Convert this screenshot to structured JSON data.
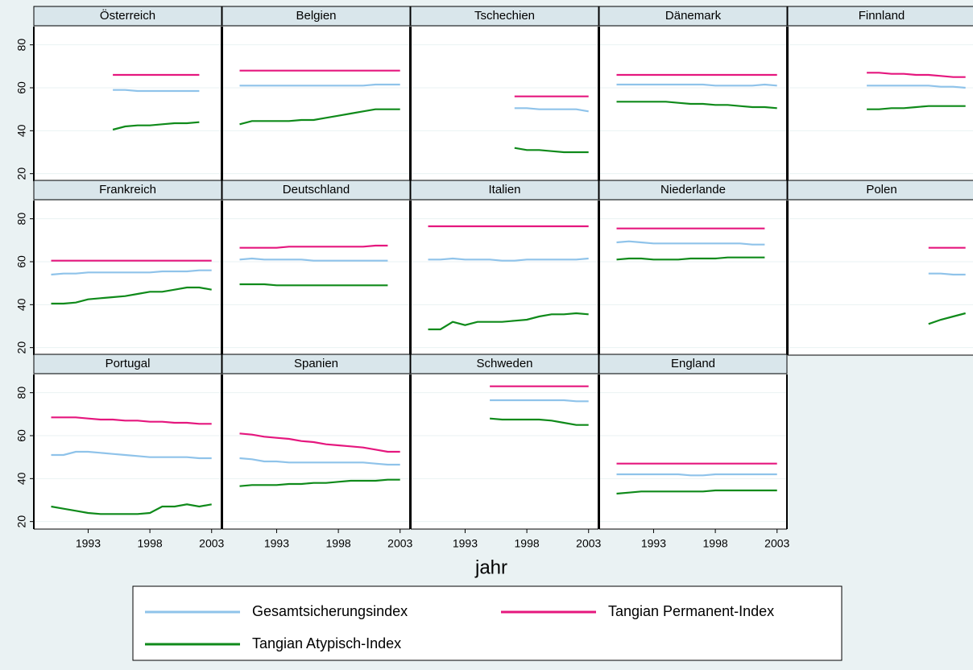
{
  "chart_data": {
    "type": "line",
    "xlabel": "jahr",
    "x": [
      1990,
      1991,
      1992,
      1993,
      1994,
      1995,
      1996,
      1997,
      1998,
      1999,
      2000,
      2001,
      2002,
      2003
    ],
    "xlim": [
      1988.6,
      2003.8
    ],
    "xticks": [
      1993,
      1998,
      2003
    ],
    "ylim": [
      16.5,
      88.5
    ],
    "yticks": [
      20,
      40,
      60,
      80
    ],
    "grid": true,
    "legend": "bottom",
    "series": [
      {
        "name": "Gesamtsicherungsindex",
        "color": "#8fc3ea"
      },
      {
        "name": "Tangian Permanent-Index",
        "color": "#e5177e"
      },
      {
        "name": "Tangian Atypisch-Index",
        "color": "#0f8a1a"
      }
    ],
    "panels": [
      {
        "title": "Österreich",
        "values": [
          [
            null,
            null,
            null,
            null,
            null,
            59,
            59,
            58.5,
            58.5,
            58.5,
            58.5,
            58.5,
            58.5,
            null
          ],
          [
            null,
            null,
            null,
            null,
            null,
            66,
            66,
            66,
            66,
            66,
            66,
            66,
            66,
            null
          ],
          [
            null,
            null,
            null,
            null,
            null,
            40.5,
            42,
            42.5,
            42.5,
            43,
            43.5,
            43.5,
            44,
            null
          ]
        ]
      },
      {
        "title": "Belgien",
        "values": [
          [
            61,
            61,
            61,
            61,
            61,
            61,
            61,
            61,
            61,
            61,
            61,
            61.5,
            61.5,
            61.5
          ],
          [
            68,
            68,
            68,
            68,
            68,
            68,
            68,
            68,
            68,
            68,
            68,
            68,
            68,
            68
          ],
          [
            43,
            44.5,
            44.5,
            44.5,
            44.5,
            45,
            45,
            46,
            47,
            48,
            49,
            50,
            50,
            50
          ]
        ]
      },
      {
        "title": "Tschechien",
        "values": [
          [
            null,
            null,
            null,
            null,
            null,
            null,
            null,
            50.5,
            50.5,
            50,
            50,
            50,
            50,
            49
          ],
          [
            null,
            null,
            null,
            null,
            null,
            null,
            null,
            56,
            56,
            56,
            56,
            56,
            56,
            56
          ],
          [
            null,
            null,
            null,
            null,
            null,
            null,
            null,
            32,
            31,
            31,
            30.5,
            30,
            30,
            30
          ]
        ]
      },
      {
        "title": "Dänemark",
        "values": [
          [
            61.5,
            61.5,
            61.5,
            61.5,
            61.5,
            61.5,
            61.5,
            61.5,
            61,
            61,
            61,
            61,
            61.5,
            61
          ],
          [
            66,
            66,
            66,
            66,
            66,
            66,
            66,
            66,
            66,
            66,
            66,
            66,
            66,
            66
          ],
          [
            53.5,
            53.5,
            53.5,
            53.5,
            53.5,
            53,
            52.5,
            52.5,
            52,
            52,
            51.5,
            51,
            51,
            50.5
          ]
        ]
      },
      {
        "title": "Finnland",
        "values": [
          [
            null,
            null,
            null,
            null,
            null,
            61,
            61,
            61,
            61,
            61,
            61,
            60.5,
            60.5,
            60
          ],
          [
            null,
            null,
            null,
            null,
            null,
            67,
            67,
            66.5,
            66.5,
            66,
            66,
            65.5,
            65,
            65
          ],
          [
            null,
            null,
            null,
            null,
            null,
            50,
            50,
            50.5,
            50.5,
            51,
            51.5,
            51.5,
            51.5,
            51.5
          ]
        ]
      },
      {
        "title": "Frankreich",
        "values": [
          [
            54,
            54.5,
            54.5,
            55,
            55,
            55,
            55,
            55,
            55,
            55.5,
            55.5,
            55.5,
            56,
            56
          ],
          [
            60.5,
            60.5,
            60.5,
            60.5,
            60.5,
            60.5,
            60.5,
            60.5,
            60.5,
            60.5,
            60.5,
            60.5,
            60.5,
            60.5
          ],
          [
            40.5,
            40.5,
            41,
            42.5,
            43,
            43.5,
            44,
            45,
            46,
            46,
            47,
            48,
            48,
            47
          ]
        ]
      },
      {
        "title": "Deutschland",
        "values": [
          [
            61,
            61.5,
            61,
            61,
            61,
            61,
            60.5,
            60.5,
            60.5,
            60.5,
            60.5,
            60.5,
            60.5,
            null
          ],
          [
            66.5,
            66.5,
            66.5,
            66.5,
            67,
            67,
            67,
            67,
            67,
            67,
            67,
            67.5,
            67.5,
            null
          ],
          [
            49.5,
            49.5,
            49.5,
            49,
            49,
            49,
            49,
            49,
            49,
            49,
            49,
            49,
            49,
            null
          ]
        ]
      },
      {
        "title": "Italien",
        "values": [
          [
            61,
            61,
            61.5,
            61,
            61,
            61,
            60.5,
            60.5,
            61,
            61,
            61,
            61,
            61,
            61.5
          ],
          [
            76.5,
            76.5,
            76.5,
            76.5,
            76.5,
            76.5,
            76.5,
            76.5,
            76.5,
            76.5,
            76.5,
            76.5,
            76.5,
            76.5
          ],
          [
            28.5,
            28.5,
            32,
            30.5,
            32,
            32,
            32,
            32.5,
            33,
            34.5,
            35.5,
            35.5,
            36,
            35.5
          ]
        ]
      },
      {
        "title": "Niederlande",
        "values": [
          [
            69,
            69.5,
            69,
            68.5,
            68.5,
            68.5,
            68.5,
            68.5,
            68.5,
            68.5,
            68.5,
            68,
            68,
            null
          ],
          [
            75.5,
            75.5,
            75.5,
            75.5,
            75.5,
            75.5,
            75.5,
            75.5,
            75.5,
            75.5,
            75.5,
            75.5,
            75.5,
            null
          ],
          [
            61,
            61.5,
            61.5,
            61,
            61,
            61,
            61.5,
            61.5,
            61.5,
            62,
            62,
            62,
            62,
            null
          ]
        ]
      },
      {
        "title": "Polen",
        "values": [
          [
            null,
            null,
            null,
            null,
            null,
            null,
            null,
            null,
            null,
            null,
            54.5,
            54.5,
            54,
            54
          ],
          [
            null,
            null,
            null,
            null,
            null,
            null,
            null,
            null,
            null,
            null,
            66.5,
            66.5,
            66.5,
            66.5
          ],
          [
            null,
            null,
            null,
            null,
            null,
            null,
            null,
            null,
            null,
            null,
            31,
            33,
            34.5,
            36
          ]
        ]
      },
      {
        "title": "Portugal",
        "values": [
          [
            51,
            51,
            52.5,
            52.5,
            52,
            51.5,
            51,
            50.5,
            50,
            50,
            50,
            50,
            49.5,
            49.5
          ],
          [
            68.5,
            68.5,
            68.5,
            68,
            67.5,
            67.5,
            67,
            67,
            66.5,
            66.5,
            66,
            66,
            65.5,
            65.5
          ],
          [
            27,
            26,
            25,
            24,
            23.5,
            23.5,
            23.5,
            23.5,
            24,
            27,
            27,
            28,
            27,
            28
          ]
        ]
      },
      {
        "title": "Spanien",
        "values": [
          [
            49.5,
            49,
            48,
            48,
            47.5,
            47.5,
            47.5,
            47.5,
            47.5,
            47.5,
            47.5,
            47,
            46.5,
            46.5
          ],
          [
            61,
            60.5,
            59.5,
            59,
            58.5,
            57.5,
            57,
            56,
            55.5,
            55,
            54.5,
            53.5,
            52.5,
            52.5
          ],
          [
            36.5,
            37,
            37,
            37,
            37.5,
            37.5,
            38,
            38,
            38.5,
            39,
            39,
            39,
            39.5,
            39.5
          ]
        ]
      },
      {
        "title": "Schweden",
        "values": [
          [
            null,
            null,
            null,
            null,
            null,
            76.5,
            76.5,
            76.5,
            76.5,
            76.5,
            76.5,
            76.5,
            76,
            76
          ],
          [
            null,
            null,
            null,
            null,
            null,
            83,
            83,
            83,
            83,
            83,
            83,
            83,
            83,
            83
          ],
          [
            null,
            null,
            null,
            null,
            null,
            68,
            67.5,
            67.5,
            67.5,
            67.5,
            67,
            66,
            65,
            65
          ]
        ]
      },
      {
        "title": "England",
        "values": [
          [
            42,
            42,
            42,
            42,
            42,
            42,
            41.5,
            41.5,
            42,
            42,
            42,
            42,
            42,
            42
          ],
          [
            47,
            47,
            47,
            47,
            47,
            47,
            47,
            47,
            47,
            47,
            47,
            47,
            47,
            47
          ],
          [
            33,
            33.5,
            34,
            34,
            34,
            34,
            34,
            34,
            34.5,
            34.5,
            34.5,
            34.5,
            34.5,
            34.5
          ]
        ]
      }
    ]
  }
}
